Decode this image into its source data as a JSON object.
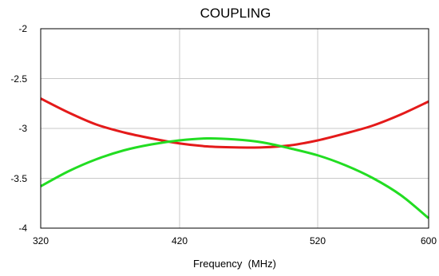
{
  "chart_data": {
    "type": "line",
    "title": "COUPLING",
    "xlabel": "Frequency  (MHz)",
    "ylabel": "",
    "xlim": [
      320,
      600
    ],
    "ylim": [
      -4,
      -2
    ],
    "x_ticks": [
      "320",
      "420",
      "520",
      "600"
    ],
    "y_ticks": [
      "-2",
      "-2.5",
      "-3",
      "-3.5",
      "-4"
    ],
    "grid": true,
    "series": [
      {
        "color": "#e41a1a",
        "x": [
          320,
          340,
          360,
          380,
          400,
          420,
          440,
          460,
          480,
          500,
          520,
          540,
          560,
          580,
          600
        ],
        "values": [
          -2.7,
          -2.84,
          -2.96,
          -3.04,
          -3.1,
          -3.15,
          -3.18,
          -3.19,
          -3.19,
          -3.17,
          -3.12,
          -3.05,
          -2.97,
          -2.86,
          -2.73
        ]
      },
      {
        "color": "#22dd22",
        "x": [
          320,
          340,
          360,
          380,
          400,
          420,
          440,
          460,
          480,
          500,
          520,
          540,
          560,
          580,
          600
        ],
        "values": [
          -3.58,
          -3.43,
          -3.31,
          -3.22,
          -3.16,
          -3.12,
          -3.1,
          -3.11,
          -3.14,
          -3.2,
          -3.27,
          -3.37,
          -3.5,
          -3.67,
          -3.9
        ]
      }
    ]
  }
}
